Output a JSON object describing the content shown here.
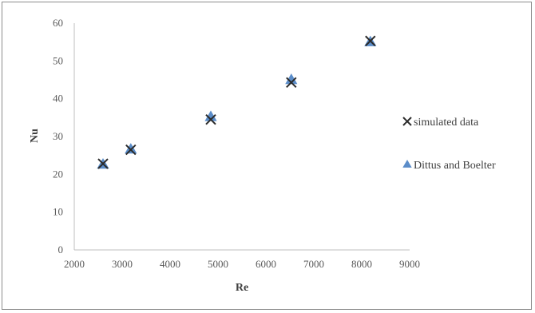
{
  "chart_data": {
    "type": "scatter",
    "xlabel": "Re",
    "ylabel": "Nu",
    "xlim": [
      2000,
      9000
    ],
    "ylim": [
      0,
      60
    ],
    "xticks": [
      2000,
      3000,
      4000,
      5000,
      6000,
      7000,
      8000,
      9000
    ],
    "yticks": [
      0,
      10,
      20,
      30,
      40,
      50,
      60
    ],
    "grid": false,
    "legend_position": "right",
    "series": [
      {
        "name": "simulated data",
        "marker": "x",
        "color": "#2b2b2b",
        "points": [
          {
            "x": 2600,
            "y": 22.8
          },
          {
            "x": 3180,
            "y": 26.5
          },
          {
            "x": 4850,
            "y": 34.5
          },
          {
            "x": 6530,
            "y": 44.3
          },
          {
            "x": 8180,
            "y": 55.3
          }
        ]
      },
      {
        "name": "Dittus and Boelter",
        "marker": "triangle",
        "color": "#5b8dc9",
        "points": [
          {
            "x": 2600,
            "y": 22.6
          },
          {
            "x": 3180,
            "y": 26.6
          },
          {
            "x": 4850,
            "y": 35.2
          },
          {
            "x": 6530,
            "y": 45.0
          },
          {
            "x": 8180,
            "y": 55.0
          }
        ]
      }
    ]
  }
}
